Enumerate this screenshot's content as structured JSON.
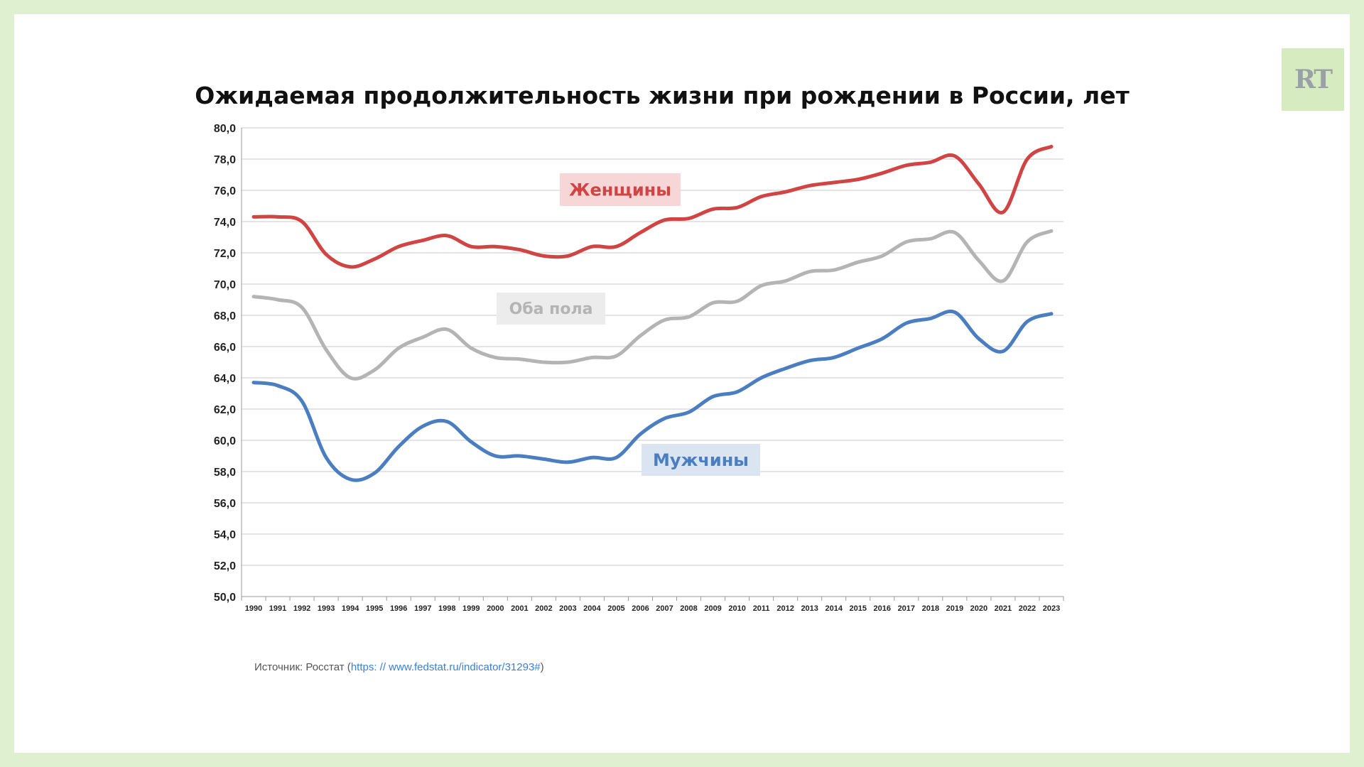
{
  "title": "Ожидаемая продолжительность жизни при рождении в России, лет",
  "logo": {
    "text": "RT",
    "bg_color": "#d6ecc0",
    "text_color": "#9aa1a6"
  },
  "source": {
    "prefix": "Источник: Росстат (",
    "link": "https: // www.fedstat.ru/indicator/31293#",
    "suffix": ")"
  },
  "chart_data": {
    "type": "line",
    "title": "Ожидаемая продолжительность жизни при рождении в России, лет",
    "xlabel": "",
    "ylabel": "",
    "ylim": [
      50,
      80
    ],
    "yticks": [
      "50,0",
      "52,0",
      "54,0",
      "56,0",
      "58,0",
      "60,0",
      "62,0",
      "64,0",
      "66,0",
      "68,0",
      "70,0",
      "72,0",
      "74,0",
      "76,0",
      "78,0",
      "80,0"
    ],
    "grid": true,
    "categories": [
      "1990",
      "1991",
      "1992",
      "1993",
      "1994",
      "1995",
      "1996",
      "1997",
      "1998",
      "1999",
      "2000",
      "2001",
      "2002",
      "2003",
      "2004",
      "2005",
      "2006",
      "2007",
      "2008",
      "2009",
      "2010",
      "2011",
      "2012",
      "2013",
      "2014",
      "2015",
      "2016",
      "2017",
      "2018",
      "2019",
      "2020",
      "2021",
      "2022",
      "2023"
    ],
    "series": [
      {
        "name": "Женщины",
        "color": "#d04444",
        "label_bg": "#f6d6d6",
        "values": [
          74.3,
          74.3,
          74.0,
          71.9,
          71.1,
          71.6,
          72.4,
          72.8,
          73.1,
          72.4,
          72.4,
          72.2,
          71.8,
          71.8,
          72.4,
          72.4,
          73.3,
          74.1,
          74.2,
          74.8,
          74.9,
          75.6,
          75.9,
          76.3,
          76.5,
          76.7,
          77.1,
          77.6,
          77.8,
          78.2,
          76.4,
          74.6,
          78.0,
          78.8
        ]
      },
      {
        "name": "Оба пола",
        "color": "#b4b4b4",
        "label_bg": "#ececec",
        "values": [
          69.2,
          69.0,
          68.5,
          65.8,
          64.0,
          64.5,
          65.9,
          66.6,
          67.1,
          65.9,
          65.3,
          65.2,
          65.0,
          65.0,
          65.3,
          65.4,
          66.7,
          67.7,
          67.9,
          68.8,
          68.9,
          69.9,
          70.2,
          70.8,
          70.9,
          71.4,
          71.8,
          72.7,
          72.9,
          73.3,
          71.5,
          70.2,
          72.7,
          73.4
        ]
      },
      {
        "name": "Мужчины",
        "color": "#4a7ec0",
        "label_bg": "#dbe5f1",
        "values": [
          63.7,
          63.5,
          62.5,
          58.9,
          57.5,
          57.9,
          59.6,
          60.9,
          61.2,
          59.9,
          59.0,
          59.0,
          58.8,
          58.6,
          58.9,
          58.9,
          60.4,
          61.4,
          61.8,
          62.8,
          63.1,
          64.0,
          64.6,
          65.1,
          65.3,
          65.9,
          66.5,
          67.5,
          67.8,
          68.2,
          66.5,
          65.7,
          67.6,
          68.1
        ]
      }
    ]
  }
}
